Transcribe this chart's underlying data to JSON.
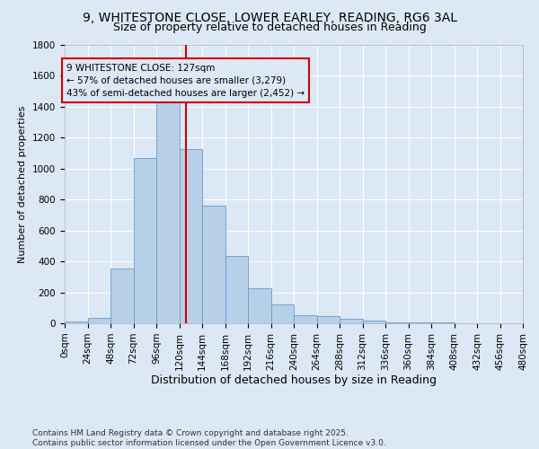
{
  "title1": "9, WHITESTONE CLOSE, LOWER EARLEY, READING, RG6 3AL",
  "title2": "Size of property relative to detached houses in Reading",
  "xlabel": "Distribution of detached houses by size in Reading",
  "ylabel": "Number of detached properties",
  "bar_color": "#b8cfe8",
  "bar_edge_color": "#6699cc",
  "bg_color": "#dce8f5",
  "grid_color": "#ffffff",
  "bins": [
    0,
    24,
    48,
    72,
    96,
    120,
    144,
    168,
    192,
    216,
    240,
    264,
    288,
    312,
    336,
    360,
    384,
    408,
    432,
    456,
    480
  ],
  "values": [
    10,
    35,
    355,
    1070,
    1470,
    1125,
    760,
    435,
    225,
    120,
    55,
    45,
    30,
    20,
    5,
    5,
    3,
    2,
    1,
    1
  ],
  "property_size": 127,
  "vline_color": "#cc0000",
  "annotation_line1": "9 WHITESTONE CLOSE: 127sqm",
  "annotation_line2": "← 57% of detached houses are smaller (3,279)",
  "annotation_line3": "43% of semi-detached houses are larger (2,452) →",
  "annotation_box_color": "#cc0000",
  "ylim": [
    0,
    1800
  ],
  "yticks": [
    0,
    200,
    400,
    600,
    800,
    1000,
    1200,
    1400,
    1600,
    1800
  ],
  "footer": "Contains HM Land Registry data © Crown copyright and database right 2025.\nContains public sector information licensed under the Open Government Licence v3.0.",
  "title1_fontsize": 10,
  "title2_fontsize": 9,
  "xlabel_fontsize": 9,
  "ylabel_fontsize": 8,
  "tick_fontsize": 7.5,
  "annotation_fontsize": 7.5,
  "footer_fontsize": 6.5
}
